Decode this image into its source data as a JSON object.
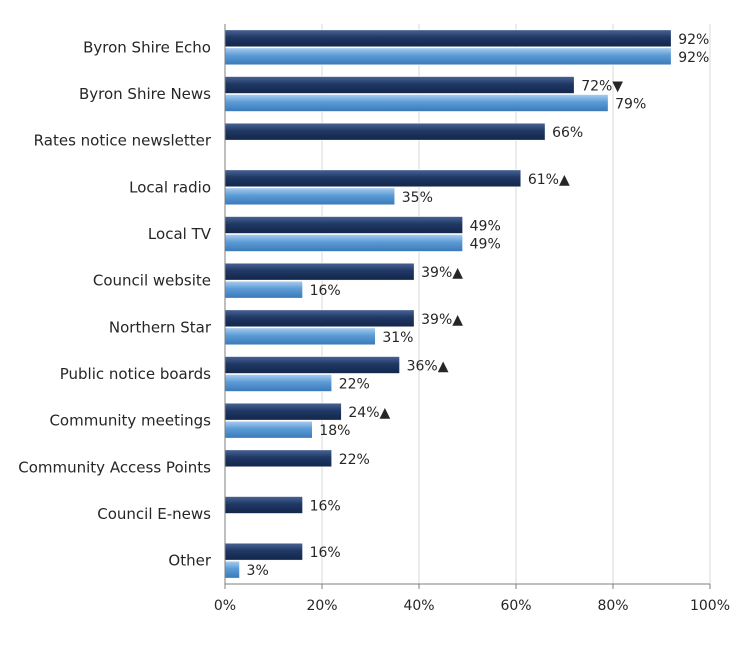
{
  "chart_data": {
    "type": "bar",
    "orientation": "horizontal",
    "categories": [
      "Byron Shire Echo",
      "Byron Shire News",
      "Rates notice newsletter",
      "Local radio",
      "Local TV",
      "Council website",
      "Northern Star",
      "Public notice boards",
      "Community meetings",
      "Community Access Points",
      "Council E-news",
      "Other"
    ],
    "series": [
      {
        "values": [
          92,
          72,
          66,
          61,
          49,
          39,
          39,
          36,
          24,
          22,
          16,
          16
        ],
        "labels": [
          "92%",
          "72%▼",
          "66%",
          "61%▲",
          "49%",
          "39%▲",
          "39%▲",
          "36%▲",
          "24%▲",
          "22%",
          "16%",
          "16%"
        ]
      },
      {
        "values": [
          92,
          79,
          null,
          35,
          49,
          16,
          31,
          22,
          18,
          null,
          null,
          3
        ],
        "labels": [
          "92%",
          "79%",
          null,
          "35%",
          "49%",
          "16%",
          "31%",
          "22%",
          "18%",
          null,
          null,
          "3%"
        ]
      }
    ],
    "xlim": [
      0,
      100
    ],
    "xticks": [
      "0%",
      "20%",
      "40%",
      "60%",
      "80%",
      "100%"
    ],
    "grid": true,
    "colors": {
      "dark": "#1f3864",
      "light": "#5b9bd5"
    }
  }
}
